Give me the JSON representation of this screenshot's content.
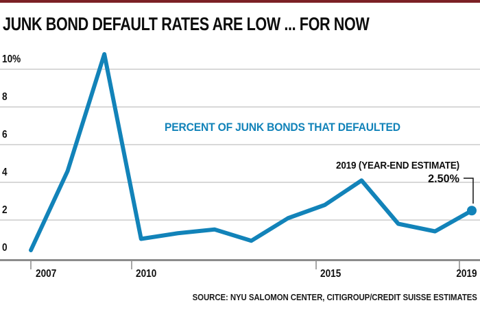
{
  "page": {
    "title": "JUNK BOND DEFAULT RATES ARE LOW ... FOR NOW"
  },
  "chart_data": {
    "type": "line",
    "title": "JUNK BOND DEFAULT RATES ARE LOW ... FOR NOW",
    "series_label": "PERCENT OF JUNK BONDS THAT DEFAULTED",
    "x": [
      2007,
      2008,
      2009,
      2010,
      2011,
      2012,
      2013,
      2014,
      2015,
      2016,
      2017,
      2018,
      2019
    ],
    "series": [
      {
        "name": "PERCENT OF JUNK BONDS THAT DEFAULTED",
        "values": [
          0.4,
          4.6,
          10.8,
          1.0,
          1.3,
          1.5,
          0.9,
          2.1,
          2.8,
          4.1,
          1.8,
          1.4,
          2.5
        ]
      }
    ],
    "ylim": [
      0,
      11
    ],
    "xlabel": "",
    "ylabel": "",
    "grid": true,
    "legend_position": "none",
    "yticks": [
      {
        "label": "10%",
        "value": 10
      },
      {
        "label": "8",
        "value": 8
      },
      {
        "label": "6",
        "value": 6
      },
      {
        "label": "4",
        "value": 4
      },
      {
        "label": "2",
        "value": 2
      },
      {
        "label": "0",
        "value": 0
      }
    ],
    "xticks": [
      {
        "label": "2007",
        "year": 2007
      },
      {
        "label": "2010",
        "year": 2010
      },
      {
        "label": "2015",
        "year": 2015
      },
      {
        "label": "2019",
        "year": 2019
      }
    ],
    "annotation": {
      "line1": "2019 (YEAR-END ESTIMATE)",
      "line2": "2.50%"
    },
    "end_point": {
      "year": 2019,
      "value": 2.5
    },
    "source": "SOURCE: NYU SALOMON CENTER, CITIGROUP/CREDIT SUISSE ESTIMATES",
    "colors": {
      "line": "#1283b9",
      "series_label": "#1283b9",
      "grid": "#cccccc",
      "axis": "#8c8c8c",
      "tick": "#a6a6a6",
      "leader": "#111111",
      "accent_bar": "#7b2125",
      "text": "#111111"
    }
  }
}
